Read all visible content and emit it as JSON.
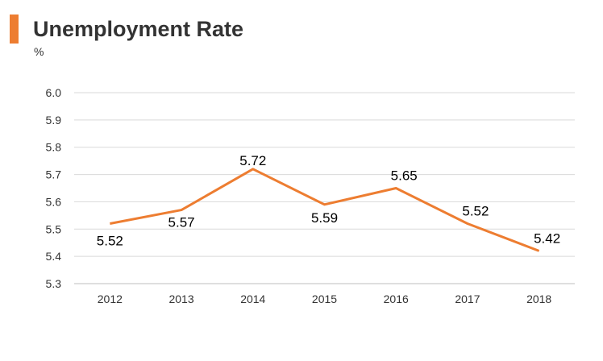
{
  "title": "Unemployment Rate",
  "unit": "%",
  "colors": {
    "accent": "#ED7D31",
    "line": "#ED7D31",
    "grid": "#D9D9D9",
    "text": "#333333"
  },
  "chart_data": {
    "type": "line",
    "title": "Unemployment Rate",
    "ylabel": "%",
    "xlabel": "",
    "categories": [
      "2012",
      "2013",
      "2014",
      "2015",
      "2016",
      "2017",
      "2018"
    ],
    "series": [
      {
        "values": [
          5.52,
          5.57,
          5.72,
          5.59,
          5.65,
          5.52,
          5.42
        ],
        "color": "#ED7D31"
      }
    ],
    "data_labels": [
      "5.52",
      "5.57",
      "5.72",
      "5.59",
      "5.65",
      "5.52",
      "5.42"
    ],
    "ylim": [
      5.3,
      6.0
    ],
    "yticks": [
      "5.3",
      "5.4",
      "5.5",
      "5.6",
      "5.7",
      "5.8",
      "5.9",
      "6.0"
    ],
    "grid": true,
    "legend": "none"
  }
}
